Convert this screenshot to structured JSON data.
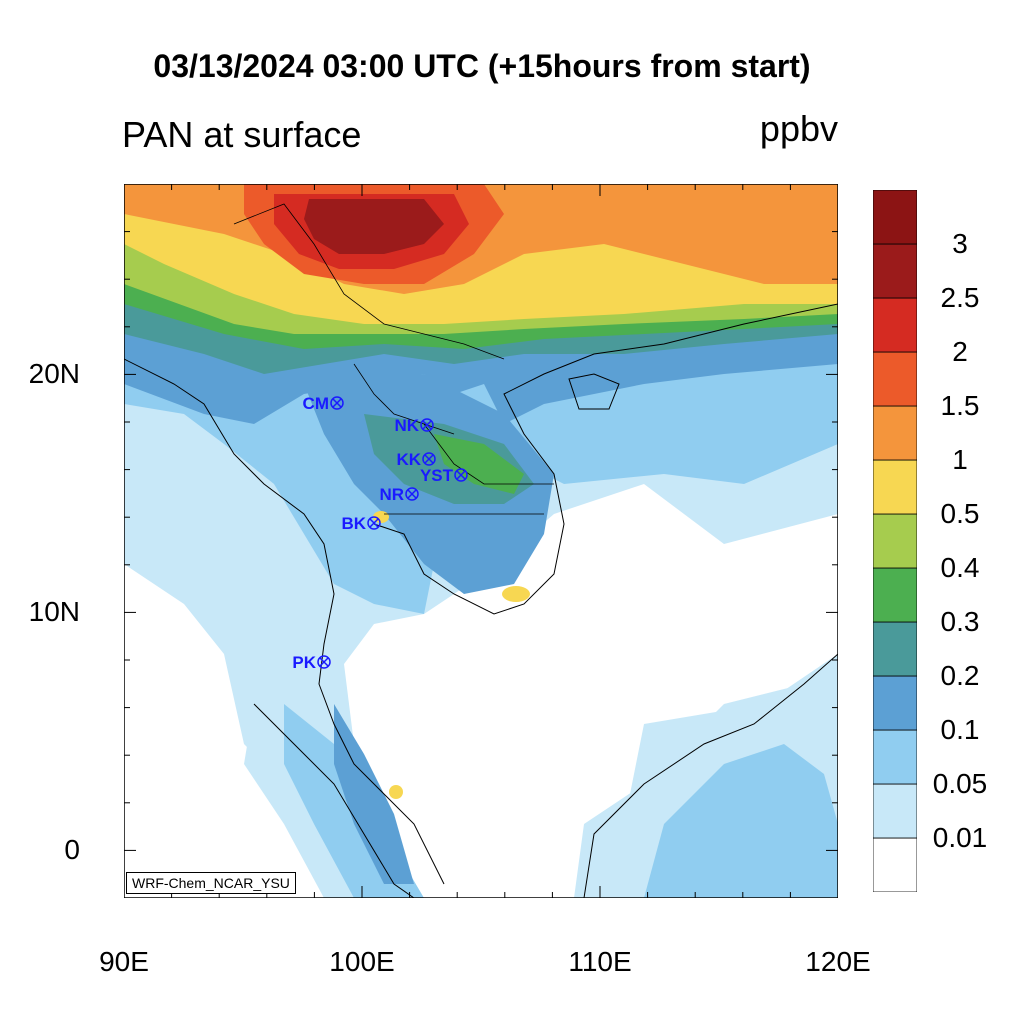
{
  "header": {
    "title": "03/13/2024 03:00 UTC (+15hours from start)",
    "left_string": "PAN at surface",
    "units": "ppbv"
  },
  "credit": "WRF-Chem_NCAR_YSU",
  "axes": {
    "lat_labels": [
      "20N",
      "10N",
      "0"
    ],
    "lon_labels": [
      "90E",
      "100E",
      "110E",
      "120E"
    ],
    "lon_range": [
      90,
      120
    ],
    "lat_range": [
      -2,
      28
    ]
  },
  "colorbar": {
    "levels": [
      "0.01",
      "0.05",
      "0.1",
      "0.2",
      "0.3",
      "0.4",
      "0.5",
      "1",
      "1.5",
      "2",
      "2.5",
      "3"
    ],
    "colors": [
      "#ffffff",
      "#c8e8f8",
      "#90cdf0",
      "#5ca0d4",
      "#4a9a9a",
      "#4caf50",
      "#a6cc4e",
      "#f7d752",
      "#f4953c",
      "#ec5a2a",
      "#d52b22",
      "#9b1b1b",
      "#8c1414"
    ]
  },
  "stations": [
    {
      "name": "CM"
    },
    {
      "name": "NK"
    },
    {
      "name": "KK"
    },
    {
      "name": "YST"
    },
    {
      "name": "NR"
    },
    {
      "name": "BK"
    },
    {
      "name": "PK"
    }
  ]
}
